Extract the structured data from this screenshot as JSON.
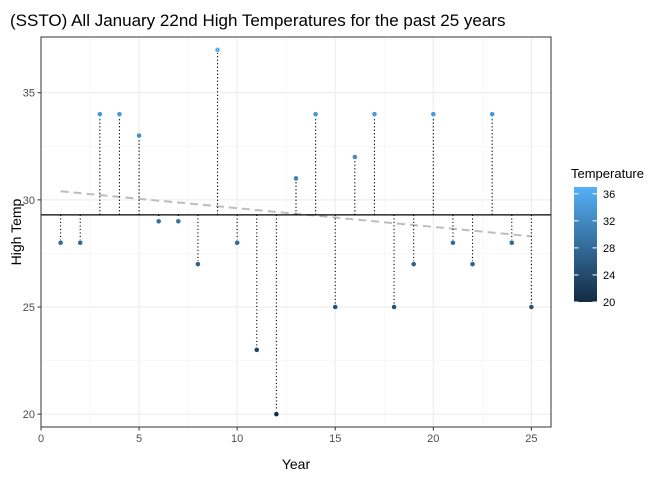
{
  "chart_data": {
    "type": "scatter",
    "title": "(SSTO) All January 22nd High Temperatures for the past 25 years",
    "xlabel": "Year",
    "ylabel": "High Temp",
    "xlim": [
      0,
      26
    ],
    "ylim": [
      19.4,
      37.6
    ],
    "x_ticks": [
      0,
      5,
      10,
      15,
      20,
      25
    ],
    "y_ticks": [
      20,
      25,
      30,
      35
    ],
    "x": [
      1,
      2,
      3,
      4,
      5,
      6,
      7,
      8,
      9,
      10,
      11,
      12,
      13,
      14,
      15,
      16,
      17,
      18,
      19,
      20,
      21,
      22,
      23,
      24,
      25
    ],
    "y": [
      28,
      28,
      34,
      34,
      33,
      29,
      29,
      27,
      37,
      28,
      23,
      20,
      31,
      34,
      25,
      32,
      34,
      25,
      27,
      34,
      28,
      27,
      34,
      28,
      25
    ],
    "mean_line": 29.3,
    "trend_line": {
      "x": [
        1,
        25
      ],
      "y": [
        30.4,
        28.3
      ],
      "style": "dashed",
      "color": "#bdbdbd"
    },
    "grid": true,
    "legend": {
      "title": "Temperature",
      "position": "right",
      "type": "colorbar",
      "range": [
        20,
        37
      ],
      "ticks": [
        20,
        24,
        28,
        32,
        36
      ],
      "low_color": "#132b43",
      "high_color": "#56b1f7"
    }
  }
}
